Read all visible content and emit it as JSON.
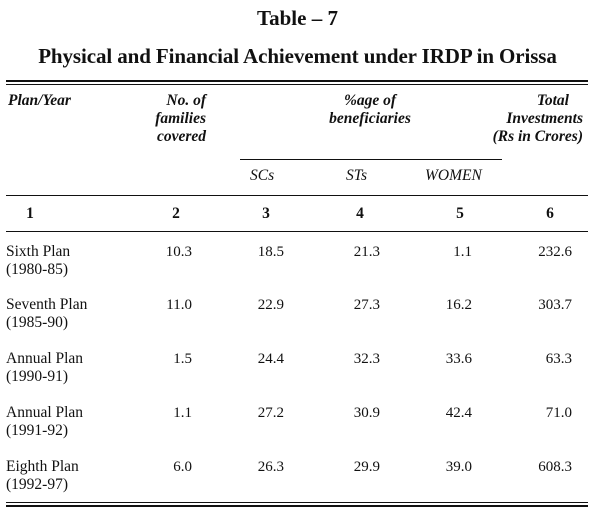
{
  "caption": {
    "table_no": "Table – 7",
    "title": "Physical and Financial Achievement under IRDP in Orissa"
  },
  "header": {
    "plan_year": "Plan/Year",
    "families": [
      "No. of",
      "families",
      "covered"
    ],
    "beneficiaries": [
      "%age of",
      "beneficiaries"
    ],
    "investments": [
      "Total",
      "Investments",
      "(Rs in Crores)"
    ],
    "sub": {
      "scs": "SCs",
      "sts": "STs",
      "women": "WOMEN"
    }
  },
  "column_numbers": [
    "1",
    "2",
    "3",
    "4",
    "5",
    "6"
  ],
  "rows": [
    {
      "plan": "Sixth Plan",
      "years": "(1980-85)",
      "families": "10.3",
      "scs": "18.5",
      "sts": "21.3",
      "women": "1.1",
      "investment": "232.6"
    },
    {
      "plan": "Seventh Plan",
      "years": "(1985-90)",
      "families": "11.0",
      "scs": "22.9",
      "sts": "27.3",
      "women": "16.2",
      "investment": "303.7"
    },
    {
      "plan": "Annual Plan",
      "years": "(1990-91)",
      "families": "1.5",
      "scs": "24.4",
      "sts": "32.3",
      "women": "33.6",
      "investment": "63.3"
    },
    {
      "plan": "Annual Plan",
      "years": "(1991-92)",
      "families": "1.1",
      "scs": "27.2",
      "sts": "30.9",
      "women": "42.4",
      "investment": "71.0"
    },
    {
      "plan": "Eighth Plan",
      "years": "(1992-97)",
      "families": "6.0",
      "scs": "26.3",
      "sts": "29.9",
      "women": "39.0",
      "investment": "608.3"
    }
  ]
}
